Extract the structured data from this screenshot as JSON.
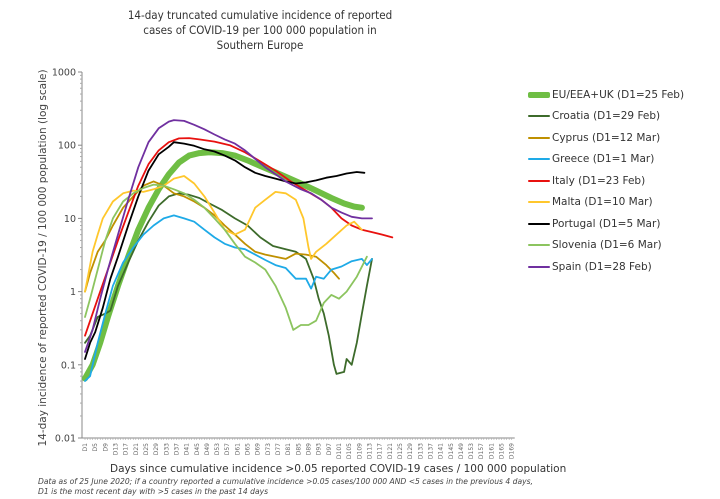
{
  "chart_data": {
    "type": "line",
    "title_lines": [
      "14-day truncated cumulative incidence of reported",
      "cases of COVID-19 per 100 000 population in",
      "Southern Europe"
    ],
    "xlabel": "Days since cumulative incidence >0.05 reported COVID-19 cases / 100 000 population",
    "ylabel": "14-day incidence of reported COVID-19 / 100 000 population (log scale)",
    "yscale": "log",
    "ylim": [
      0.01,
      1000
    ],
    "yticks": [
      "1000",
      "100",
      "10",
      "1",
      "0.1",
      "0.01"
    ],
    "ytick_values": [
      1000,
      100,
      10,
      1,
      0.1,
      0.01
    ],
    "xlim": [
      1,
      169
    ],
    "xtick_step": 4,
    "xtick_prefix": "D",
    "grid": false,
    "legend_position": "right",
    "footnote_lines": [
      "Data as of 25 June 2020; if a country reported a cumulative incidence >0.05 cases/100 000 AND <5 cases in the previous 4 days,",
      "D1 is the most recent day with >5 cases in the past 14 days"
    ],
    "series": [
      {
        "name": "EU/EEA+UK  (D1=25 Feb)",
        "color": "#6fbe44",
        "thick": true,
        "points": [
          [
            1,
            0.065
          ],
          [
            4,
            0.1
          ],
          [
            7,
            0.2
          ],
          [
            10,
            0.45
          ],
          [
            14,
            1.2
          ],
          [
            18,
            3
          ],
          [
            22,
            7
          ],
          [
            26,
            14
          ],
          [
            30,
            25
          ],
          [
            34,
            40
          ],
          [
            38,
            58
          ],
          [
            42,
            72
          ],
          [
            46,
            78
          ],
          [
            50,
            80
          ],
          [
            55,
            78
          ],
          [
            60,
            72
          ],
          [
            65,
            62
          ],
          [
            70,
            52
          ],
          [
            75,
            44
          ],
          [
            80,
            37
          ],
          [
            86,
            30
          ],
          [
            92,
            24
          ],
          [
            98,
            19
          ],
          [
            103,
            16
          ],
          [
            107,
            14.5
          ],
          [
            110,
            14
          ]
        ]
      },
      {
        "name": "Croatia  (D1=29 Feb)",
        "color": "#3d6b2b",
        "points": [
          [
            1,
            0.2
          ],
          [
            3,
            0.25
          ],
          [
            6,
            0.45
          ],
          [
            9,
            0.5
          ],
          [
            11,
            0.55
          ],
          [
            14,
            1.2
          ],
          [
            18,
            2.5
          ],
          [
            22,
            5
          ],
          [
            26,
            9
          ],
          [
            30,
            15
          ],
          [
            34,
            20
          ],
          [
            38,
            22
          ],
          [
            42,
            21
          ],
          [
            46,
            19
          ],
          [
            50,
            16
          ],
          [
            55,
            13
          ],
          [
            60,
            10
          ],
          [
            65,
            8
          ],
          [
            70,
            5.5
          ],
          [
            75,
            4.2
          ],
          [
            80,
            3.8
          ],
          [
            84,
            3.5
          ],
          [
            88,
            2.8
          ],
          [
            91,
            1.5
          ],
          [
            93,
            0.8
          ],
          [
            95,
            0.5
          ],
          [
            97,
            0.25
          ],
          [
            99,
            0.1
          ],
          [
            100,
            0.075
          ],
          [
            103,
            0.08
          ],
          [
            104,
            0.12
          ],
          [
            106,
            0.1
          ],
          [
            108,
            0.2
          ],
          [
            110,
            0.5
          ],
          [
            112,
            1.2
          ],
          [
            114,
            2.8
          ]
        ]
      },
      {
        "name": "Cyprus  (D1=12 Mar)",
        "color": "#bf9000",
        "points": [
          [
            1,
            1.0
          ],
          [
            3,
            1.8
          ],
          [
            6,
            3.5
          ],
          [
            9,
            5
          ],
          [
            12,
            8
          ],
          [
            16,
            14
          ],
          [
            20,
            20
          ],
          [
            24,
            28
          ],
          [
            28,
            32
          ],
          [
            32,
            28
          ],
          [
            36,
            22
          ],
          [
            40,
            20
          ],
          [
            44,
            17
          ],
          [
            48,
            14
          ],
          [
            52,
            11
          ],
          [
            56,
            8
          ],
          [
            60,
            6
          ],
          [
            64,
            4.5
          ],
          [
            68,
            3.5
          ],
          [
            72,
            3.2
          ],
          [
            76,
            3.0
          ],
          [
            80,
            2.8
          ],
          [
            84,
            3.3
          ],
          [
            88,
            3.2
          ],
          [
            92,
            3.0
          ],
          [
            96,
            2.3
          ],
          [
            99,
            1.8
          ],
          [
            101,
            1.5
          ]
        ]
      },
      {
        "name": "Greece  (D1=1 Mar)",
        "color": "#1eaae7",
        "points": [
          [
            1,
            0.06
          ],
          [
            3,
            0.07
          ],
          [
            6,
            0.2
          ],
          [
            9,
            0.5
          ],
          [
            12,
            1.2
          ],
          [
            16,
            2.5
          ],
          [
            20,
            4
          ],
          [
            24,
            6
          ],
          [
            28,
            8
          ],
          [
            32,
            10
          ],
          [
            36,
            11
          ],
          [
            40,
            10
          ],
          [
            44,
            9
          ],
          [
            48,
            7
          ],
          [
            52,
            5.5
          ],
          [
            56,
            4.5
          ],
          [
            60,
            4
          ],
          [
            64,
            3.8
          ],
          [
            68,
            3.2
          ],
          [
            72,
            2.7
          ],
          [
            76,
            2.3
          ],
          [
            80,
            2.1
          ],
          [
            84,
            1.5
          ],
          [
            88,
            1.5
          ],
          [
            90,
            1.1
          ],
          [
            92,
            1.6
          ],
          [
            95,
            1.5
          ],
          [
            98,
            2.0
          ],
          [
            102,
            2.2
          ],
          [
            106,
            2.6
          ],
          [
            110,
            2.8
          ],
          [
            112,
            2.3
          ],
          [
            114,
            2.8
          ]
        ]
      },
      {
        "name": "Italy  (D1=23 Feb)",
        "color": "#e8110f",
        "points": [
          [
            1,
            0.25
          ],
          [
            4,
            0.5
          ],
          [
            7,
            1
          ],
          [
            10,
            2
          ],
          [
            14,
            5
          ],
          [
            18,
            12
          ],
          [
            22,
            28
          ],
          [
            26,
            55
          ],
          [
            30,
            85
          ],
          [
            34,
            110
          ],
          [
            38,
            124
          ],
          [
            42,
            125
          ],
          [
            46,
            120
          ],
          [
            52,
            112
          ],
          [
            58,
            100
          ],
          [
            64,
            80
          ],
          [
            70,
            60
          ],
          [
            76,
            45
          ],
          [
            82,
            32
          ],
          [
            88,
            24
          ],
          [
            94,
            18
          ],
          [
            98,
            14
          ],
          [
            102,
            10
          ],
          [
            106,
            8
          ],
          [
            110,
            7
          ],
          [
            114,
            6.5
          ],
          [
            118,
            6
          ],
          [
            122,
            5.5
          ]
        ]
      },
      {
        "name": "Malta  (D1=10 Mar)",
        "color": "#ffc72c",
        "points": [
          [
            1,
            1.0
          ],
          [
            2,
            1.5
          ],
          [
            4,
            3.5
          ],
          [
            6,
            6
          ],
          [
            8,
            10
          ],
          [
            12,
            17
          ],
          [
            16,
            22
          ],
          [
            20,
            24
          ],
          [
            24,
            23
          ],
          [
            28,
            25
          ],
          [
            32,
            28
          ],
          [
            36,
            35
          ],
          [
            40,
            38
          ],
          [
            44,
            30
          ],
          [
            48,
            20
          ],
          [
            52,
            12
          ],
          [
            56,
            7
          ],
          [
            60,
            6
          ],
          [
            64,
            7
          ],
          [
            68,
            14
          ],
          [
            72,
            18
          ],
          [
            76,
            23
          ],
          [
            80,
            22
          ],
          [
            84,
            18
          ],
          [
            87,
            10
          ],
          [
            89,
            4
          ],
          [
            90,
            2.8
          ],
          [
            92,
            3.5
          ],
          [
            96,
            4.5
          ],
          [
            100,
            6
          ],
          [
            104,
            8
          ],
          [
            107,
            9
          ],
          [
            110,
            7
          ]
        ]
      },
      {
        "name": "Portugal  (D1=5 Mar)",
        "color": "#000000",
        "points": [
          [
            1,
            0.12
          ],
          [
            3,
            0.2
          ],
          [
            5,
            0.28
          ],
          [
            8,
            0.6
          ],
          [
            11,
            1.5
          ],
          [
            14,
            3
          ],
          [
            18,
            8
          ],
          [
            22,
            20
          ],
          [
            26,
            45
          ],
          [
            30,
            75
          ],
          [
            34,
            95
          ],
          [
            36,
            110
          ],
          [
            40,
            105
          ],
          [
            44,
            98
          ],
          [
            48,
            88
          ],
          [
            52,
            82
          ],
          [
            56,
            72
          ],
          [
            60,
            62
          ],
          [
            64,
            50
          ],
          [
            68,
            42
          ],
          [
            72,
            38
          ],
          [
            76,
            35
          ],
          [
            80,
            32
          ],
          [
            84,
            30
          ],
          [
            88,
            31
          ],
          [
            92,
            33
          ],
          [
            96,
            36
          ],
          [
            100,
            38
          ],
          [
            104,
            41
          ],
          [
            108,
            43
          ],
          [
            111,
            42
          ]
        ]
      },
      {
        "name": "Slovenia  (D1=6 Mar)",
        "color": "#8cc45f",
        "points": [
          [
            1,
            0.45
          ],
          [
            3,
            0.8
          ],
          [
            6,
            2
          ],
          [
            9,
            5
          ],
          [
            12,
            10
          ],
          [
            16,
            17
          ],
          [
            20,
            22
          ],
          [
            24,
            26
          ],
          [
            28,
            29
          ],
          [
            32,
            28
          ],
          [
            36,
            25
          ],
          [
            40,
            22
          ],
          [
            44,
            18
          ],
          [
            48,
            14
          ],
          [
            52,
            10
          ],
          [
            56,
            7
          ],
          [
            60,
            4.5
          ],
          [
            64,
            3
          ],
          [
            68,
            2.5
          ],
          [
            72,
            2.0
          ],
          [
            76,
            1.2
          ],
          [
            80,
            0.6
          ],
          [
            83,
            0.3
          ],
          [
            86,
            0.35
          ],
          [
            89,
            0.35
          ],
          [
            92,
            0.4
          ],
          [
            95,
            0.7
          ],
          [
            98,
            0.9
          ],
          [
            101,
            0.8
          ],
          [
            104,
            1.0
          ],
          [
            108,
            1.6
          ],
          [
            112,
            3.0
          ]
        ]
      },
      {
        "name": "Spain  (D1=28 Feb)",
        "color": "#7030a0",
        "points": [
          [
            1,
            0.15
          ],
          [
            4,
            0.3
          ],
          [
            7,
            0.8
          ],
          [
            10,
            2
          ],
          [
            14,
            6
          ],
          [
            18,
            18
          ],
          [
            22,
            50
          ],
          [
            26,
            110
          ],
          [
            30,
            170
          ],
          [
            34,
            210
          ],
          [
            36,
            220
          ],
          [
            40,
            215
          ],
          [
            44,
            190
          ],
          [
            48,
            165
          ],
          [
            52,
            140
          ],
          [
            56,
            120
          ],
          [
            60,
            105
          ],
          [
            64,
            85
          ],
          [
            68,
            65
          ],
          [
            72,
            50
          ],
          [
            76,
            40
          ],
          [
            80,
            32
          ],
          [
            86,
            25
          ],
          [
            90,
            22
          ],
          [
            94,
            18
          ],
          [
            98,
            14
          ],
          [
            102,
            12
          ],
          [
            106,
            10.5
          ],
          [
            110,
            10
          ],
          [
            114,
            10
          ]
        ]
      }
    ]
  }
}
